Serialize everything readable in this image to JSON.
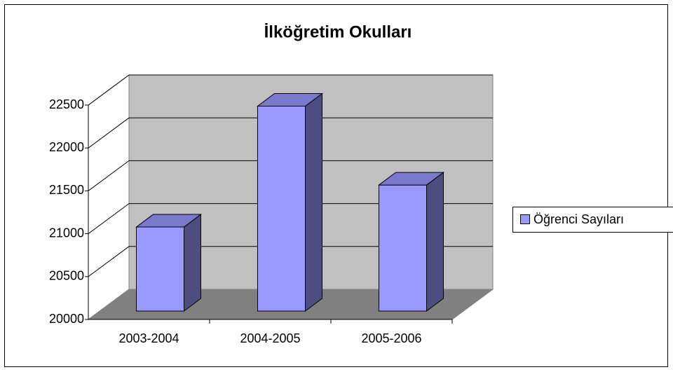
{
  "chart_data": {
    "type": "bar3d",
    "title": "İlköğretim Okulları",
    "categories": [
      "2003-2004",
      "2004-2005",
      "2005-2006"
    ],
    "series": [
      {
        "name": "Öğrenci Sayıları",
        "color": "#9999ff",
        "values": [
          20980,
          22390,
          21470
        ]
      }
    ],
    "ylim": [
      20000,
      22500
    ],
    "yticks": [
      20000,
      20500,
      21000,
      21500,
      22000,
      22500
    ],
    "grid": true,
    "legend": "right"
  }
}
